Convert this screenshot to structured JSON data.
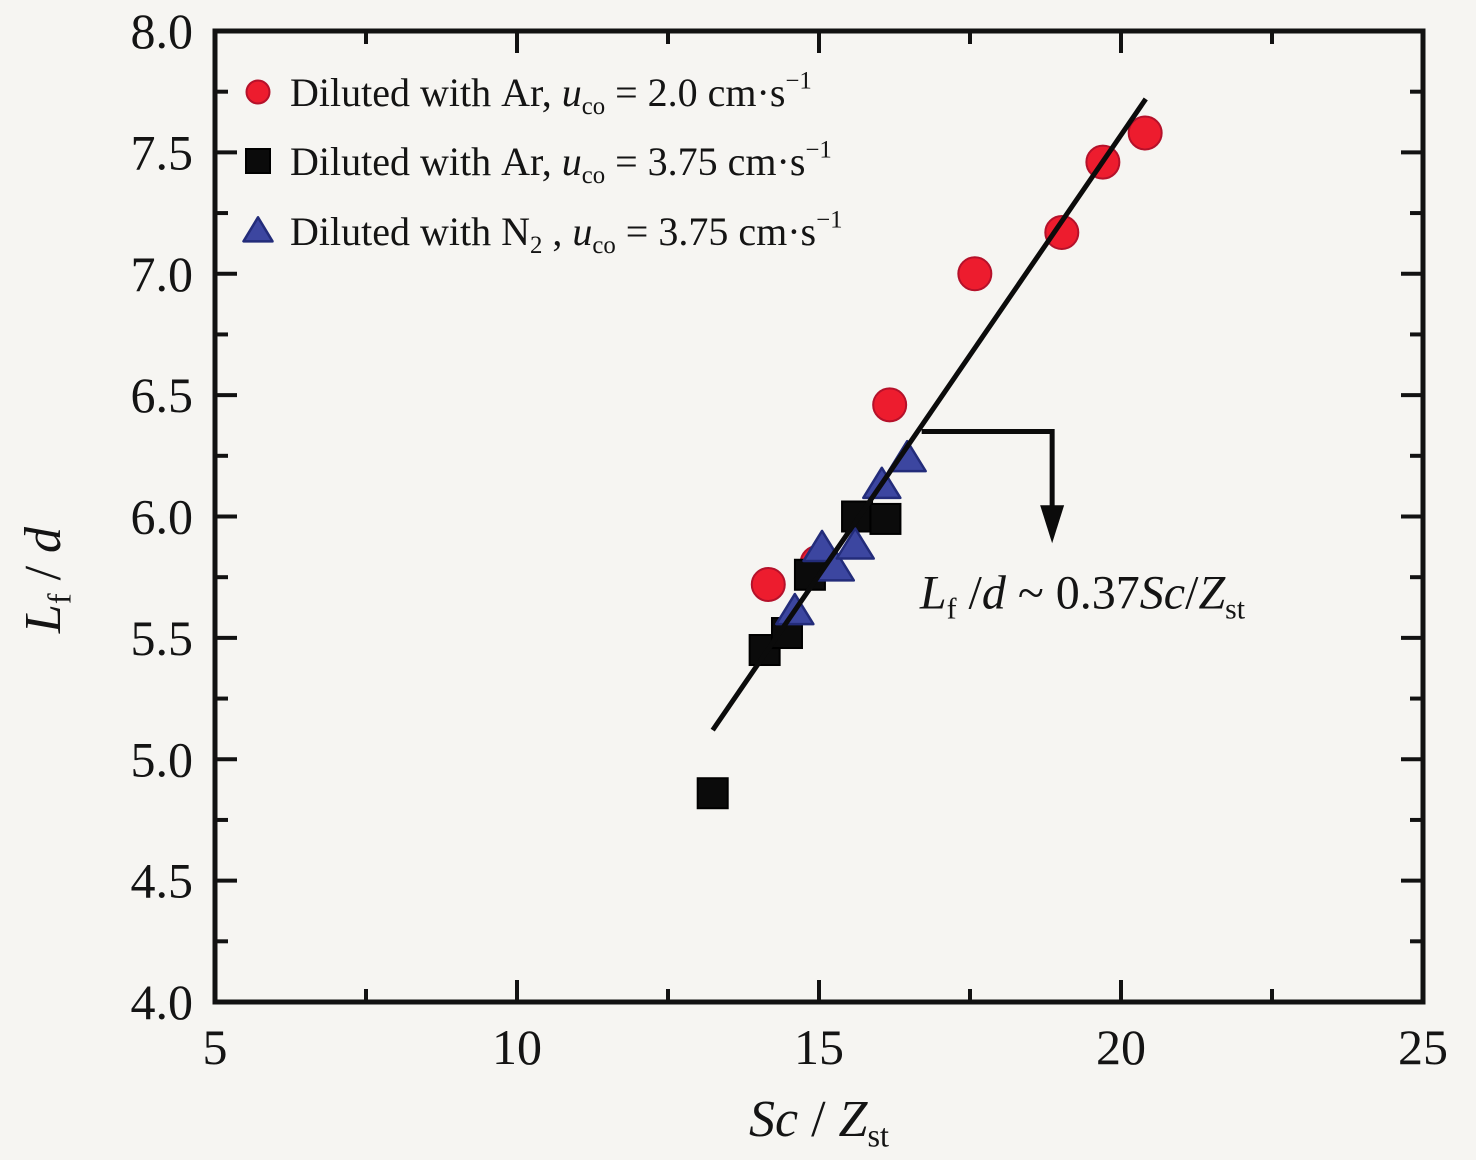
{
  "figure": {
    "background": "#f6f5f2",
    "axis_color": "#121212"
  },
  "chart_data": {
    "type": "scatter",
    "title": "",
    "xlabel": "Sc / Z_st",
    "ylabel": "L_f / d",
    "xlabel_parts": [
      {
        "t": "Sc",
        "i": true
      },
      {
        "t": " / "
      },
      {
        "t": "Z",
        "i": true
      },
      {
        "t": "st",
        "s": "sub"
      }
    ],
    "ylabel_parts": [
      {
        "t": "L",
        "i": true
      },
      {
        "t": "f",
        "s": "sub"
      },
      {
        "t": " / "
      },
      {
        "t": "d",
        "i": true
      }
    ],
    "xlim": [
      5,
      25
    ],
    "ylim": [
      4.0,
      8.0
    ],
    "grid": false,
    "legend_position": "top-left",
    "x_axis": {
      "major_ticks": [
        5,
        10,
        15,
        20,
        25
      ],
      "tick_labels": [
        "5",
        "10",
        "15",
        "20",
        "25"
      ],
      "minor_ticks": [
        7.5,
        12.5,
        17.5,
        22.5
      ]
    },
    "y_axis": {
      "major_ticks": [
        4.0,
        4.5,
        5.0,
        5.5,
        6.0,
        6.5,
        7.0,
        7.5,
        8.0
      ],
      "tick_labels": [
        "4.0",
        "4.5",
        "5.0",
        "5.5",
        "6.0",
        "6.5",
        "7.0",
        "7.5",
        "8.0"
      ],
      "minor_ticks": [
        4.25,
        4.75,
        5.25,
        5.75,
        6.25,
        6.75,
        7.25,
        7.75
      ]
    },
    "series": [
      {
        "id": "ar-2.0",
        "name": "Diluted with Ar, u_co = 2.0 cm·s⁻¹",
        "marker": "circle",
        "fill": "#ed1c2e",
        "stroke": "#b5112a",
        "label_parts": [
          {
            "t": "Diluted with Ar, "
          },
          {
            "t": "u",
            "i": true
          },
          {
            "t": "co",
            "s": "sub"
          },
          {
            "t": " = 2.0 cm·s"
          },
          {
            "t": "−1",
            "s": "sup"
          }
        ],
        "points": [
          [
            14.16,
            5.72
          ],
          [
            14.97,
            5.81
          ],
          [
            16.17,
            6.46
          ],
          [
            17.58,
            7.0
          ],
          [
            19.02,
            7.17
          ],
          [
            19.7,
            7.46
          ],
          [
            20.4,
            7.58
          ]
        ]
      },
      {
        "id": "ar-3.75",
        "name": "Diluted with Ar, u_co = 3.75 cm·s⁻¹",
        "marker": "square",
        "fill": "#0b0b0b",
        "stroke": "#000000",
        "label_parts": [
          {
            "t": "Diluted with Ar, "
          },
          {
            "t": "u",
            "i": true
          },
          {
            "t": "co",
            "s": "sub"
          },
          {
            "t": " = 3.75 cm·s"
          },
          {
            "t": "−1",
            "s": "sup"
          }
        ],
        "points": [
          [
            13.24,
            4.86
          ],
          [
            14.1,
            5.45
          ],
          [
            14.47,
            5.52
          ],
          [
            14.85,
            5.76
          ],
          [
            15.63,
            6.0
          ],
          [
            16.1,
            5.99
          ]
        ]
      },
      {
        "id": "n2-3.75",
        "name": "Diluted with N₂ , u_co = 3.75 cm·s⁻¹",
        "marker": "triangle",
        "fill": "#3c46a0",
        "stroke": "#232c7a",
        "label_parts": [
          {
            "t": "Diluted with N"
          },
          {
            "t": "2",
            "s": "sub"
          },
          {
            "t": " , "
          },
          {
            "t": "u",
            "i": true
          },
          {
            "t": "co",
            "s": "sub"
          },
          {
            "t": " = 3.75 cm·s"
          },
          {
            "t": "−1",
            "s": "sup"
          }
        ],
        "points": [
          [
            14.6,
            5.61
          ],
          [
            15.05,
            5.87
          ],
          [
            15.27,
            5.79
          ],
          [
            15.6,
            5.88
          ],
          [
            16.04,
            6.13
          ],
          [
            16.46,
            6.24
          ]
        ]
      }
    ],
    "fit_line": {
      "color": "#0b0b0b",
      "x1": 13.24,
      "y1": 5.12,
      "x2": 20.41,
      "y2": 7.72
    },
    "annotation": {
      "text": "L_f /d ~ 0.37Sc/Z_st",
      "parts": [
        {
          "t": "L",
          "i": true
        },
        {
          "t": "f",
          "s": "sub"
        },
        {
          "t": " /"
        },
        {
          "t": "d",
          "i": true
        },
        {
          "t": " ~ 0.37"
        },
        {
          "t": "Sc",
          "i": true
        },
        {
          "t": "/"
        },
        {
          "t": "Z",
          "i": true
        },
        {
          "t": "st",
          "s": "sub"
        }
      ],
      "x": 16.67,
      "y": 5.62,
      "arrow": {
        "color": "#0b0b0b",
        "points": [
          [
            16.7,
            6.35
          ],
          [
            18.86,
            6.35
          ],
          [
            18.86,
            5.89
          ]
        ]
      }
    }
  }
}
